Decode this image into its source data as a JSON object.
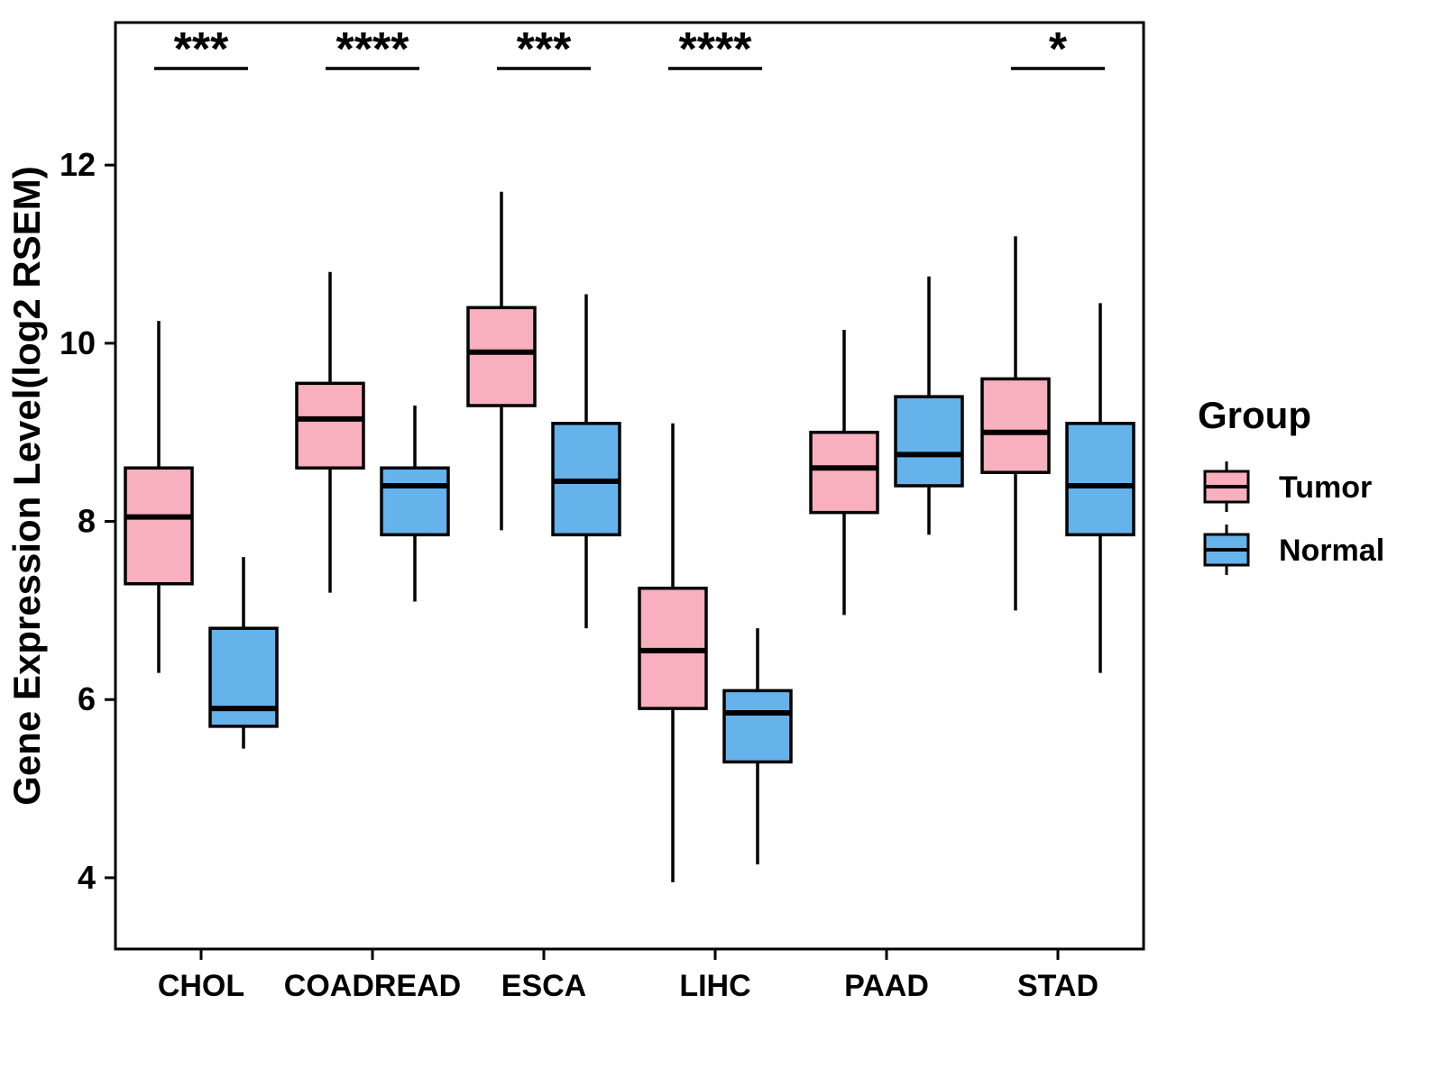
{
  "chart_data": {
    "type": "boxplot",
    "title": "",
    "xlabel": "",
    "ylabel": "Gene Expression Level(log2 RSEM)",
    "ylim": [
      3.2,
      13.6
    ],
    "yticks": [
      4,
      6,
      8,
      10,
      12
    ],
    "categories": [
      "CHOL",
      "COADREAD",
      "ESCA",
      "LIHC",
      "PAAD",
      "STAD"
    ],
    "grid": false,
    "legend": {
      "title": "Group",
      "position": "right",
      "entries": [
        {
          "label": "Tumor",
          "color": "#F8AFBE"
        },
        {
          "label": "Normal",
          "color": "#66B2EB"
        }
      ]
    },
    "significance": [
      {
        "category": "CHOL",
        "label": "***"
      },
      {
        "category": "COADREAD",
        "label": "****"
      },
      {
        "category": "ESCA",
        "label": "***"
      },
      {
        "category": "LIHC",
        "label": "****"
      },
      {
        "category": "STAD",
        "label": "*"
      }
    ],
    "series": [
      {
        "name": "Tumor",
        "color": "#F8AFBE",
        "boxes": [
          {
            "category": "CHOL",
            "whisker_low": 6.3,
            "q1": 7.3,
            "median": 8.05,
            "q3": 8.6,
            "whisker_high": 10.25
          },
          {
            "category": "COADREAD",
            "whisker_low": 7.2,
            "q1": 8.6,
            "median": 9.15,
            "q3": 9.55,
            "whisker_high": 10.8
          },
          {
            "category": "ESCA",
            "whisker_low": 7.9,
            "q1": 9.3,
            "median": 9.9,
            "q3": 10.4,
            "whisker_high": 11.7
          },
          {
            "category": "LIHC",
            "whisker_low": 3.95,
            "q1": 5.9,
            "median": 6.55,
            "q3": 7.25,
            "whisker_high": 9.1
          },
          {
            "category": "PAAD",
            "whisker_low": 6.95,
            "q1": 8.1,
            "median": 8.6,
            "q3": 9.0,
            "whisker_high": 10.15
          },
          {
            "category": "STAD",
            "whisker_low": 7.0,
            "q1": 8.55,
            "median": 9.0,
            "q3": 9.6,
            "whisker_high": 11.2
          }
        ]
      },
      {
        "name": "Normal",
        "color": "#66B2EB",
        "boxes": [
          {
            "category": "CHOL",
            "whisker_low": 5.45,
            "q1": 5.7,
            "median": 5.9,
            "q3": 6.8,
            "whisker_high": 7.6
          },
          {
            "category": "COADREAD",
            "whisker_low": 7.1,
            "q1": 7.85,
            "median": 8.4,
            "q3": 8.6,
            "whisker_high": 9.3
          },
          {
            "category": "ESCA",
            "whisker_low": 6.8,
            "q1": 7.85,
            "median": 8.45,
            "q3": 9.1,
            "whisker_high": 10.55
          },
          {
            "category": "LIHC",
            "whisker_low": 4.15,
            "q1": 5.3,
            "median": 5.85,
            "q3": 6.1,
            "whisker_high": 6.8
          },
          {
            "category": "PAAD",
            "whisker_low": 7.85,
            "q1": 8.4,
            "median": 8.75,
            "q3": 9.4,
            "whisker_high": 10.75
          },
          {
            "category": "STAD",
            "whisker_low": 6.3,
            "q1": 7.85,
            "median": 8.4,
            "q3": 9.1,
            "whisker_high": 10.45
          }
        ]
      }
    ]
  }
}
